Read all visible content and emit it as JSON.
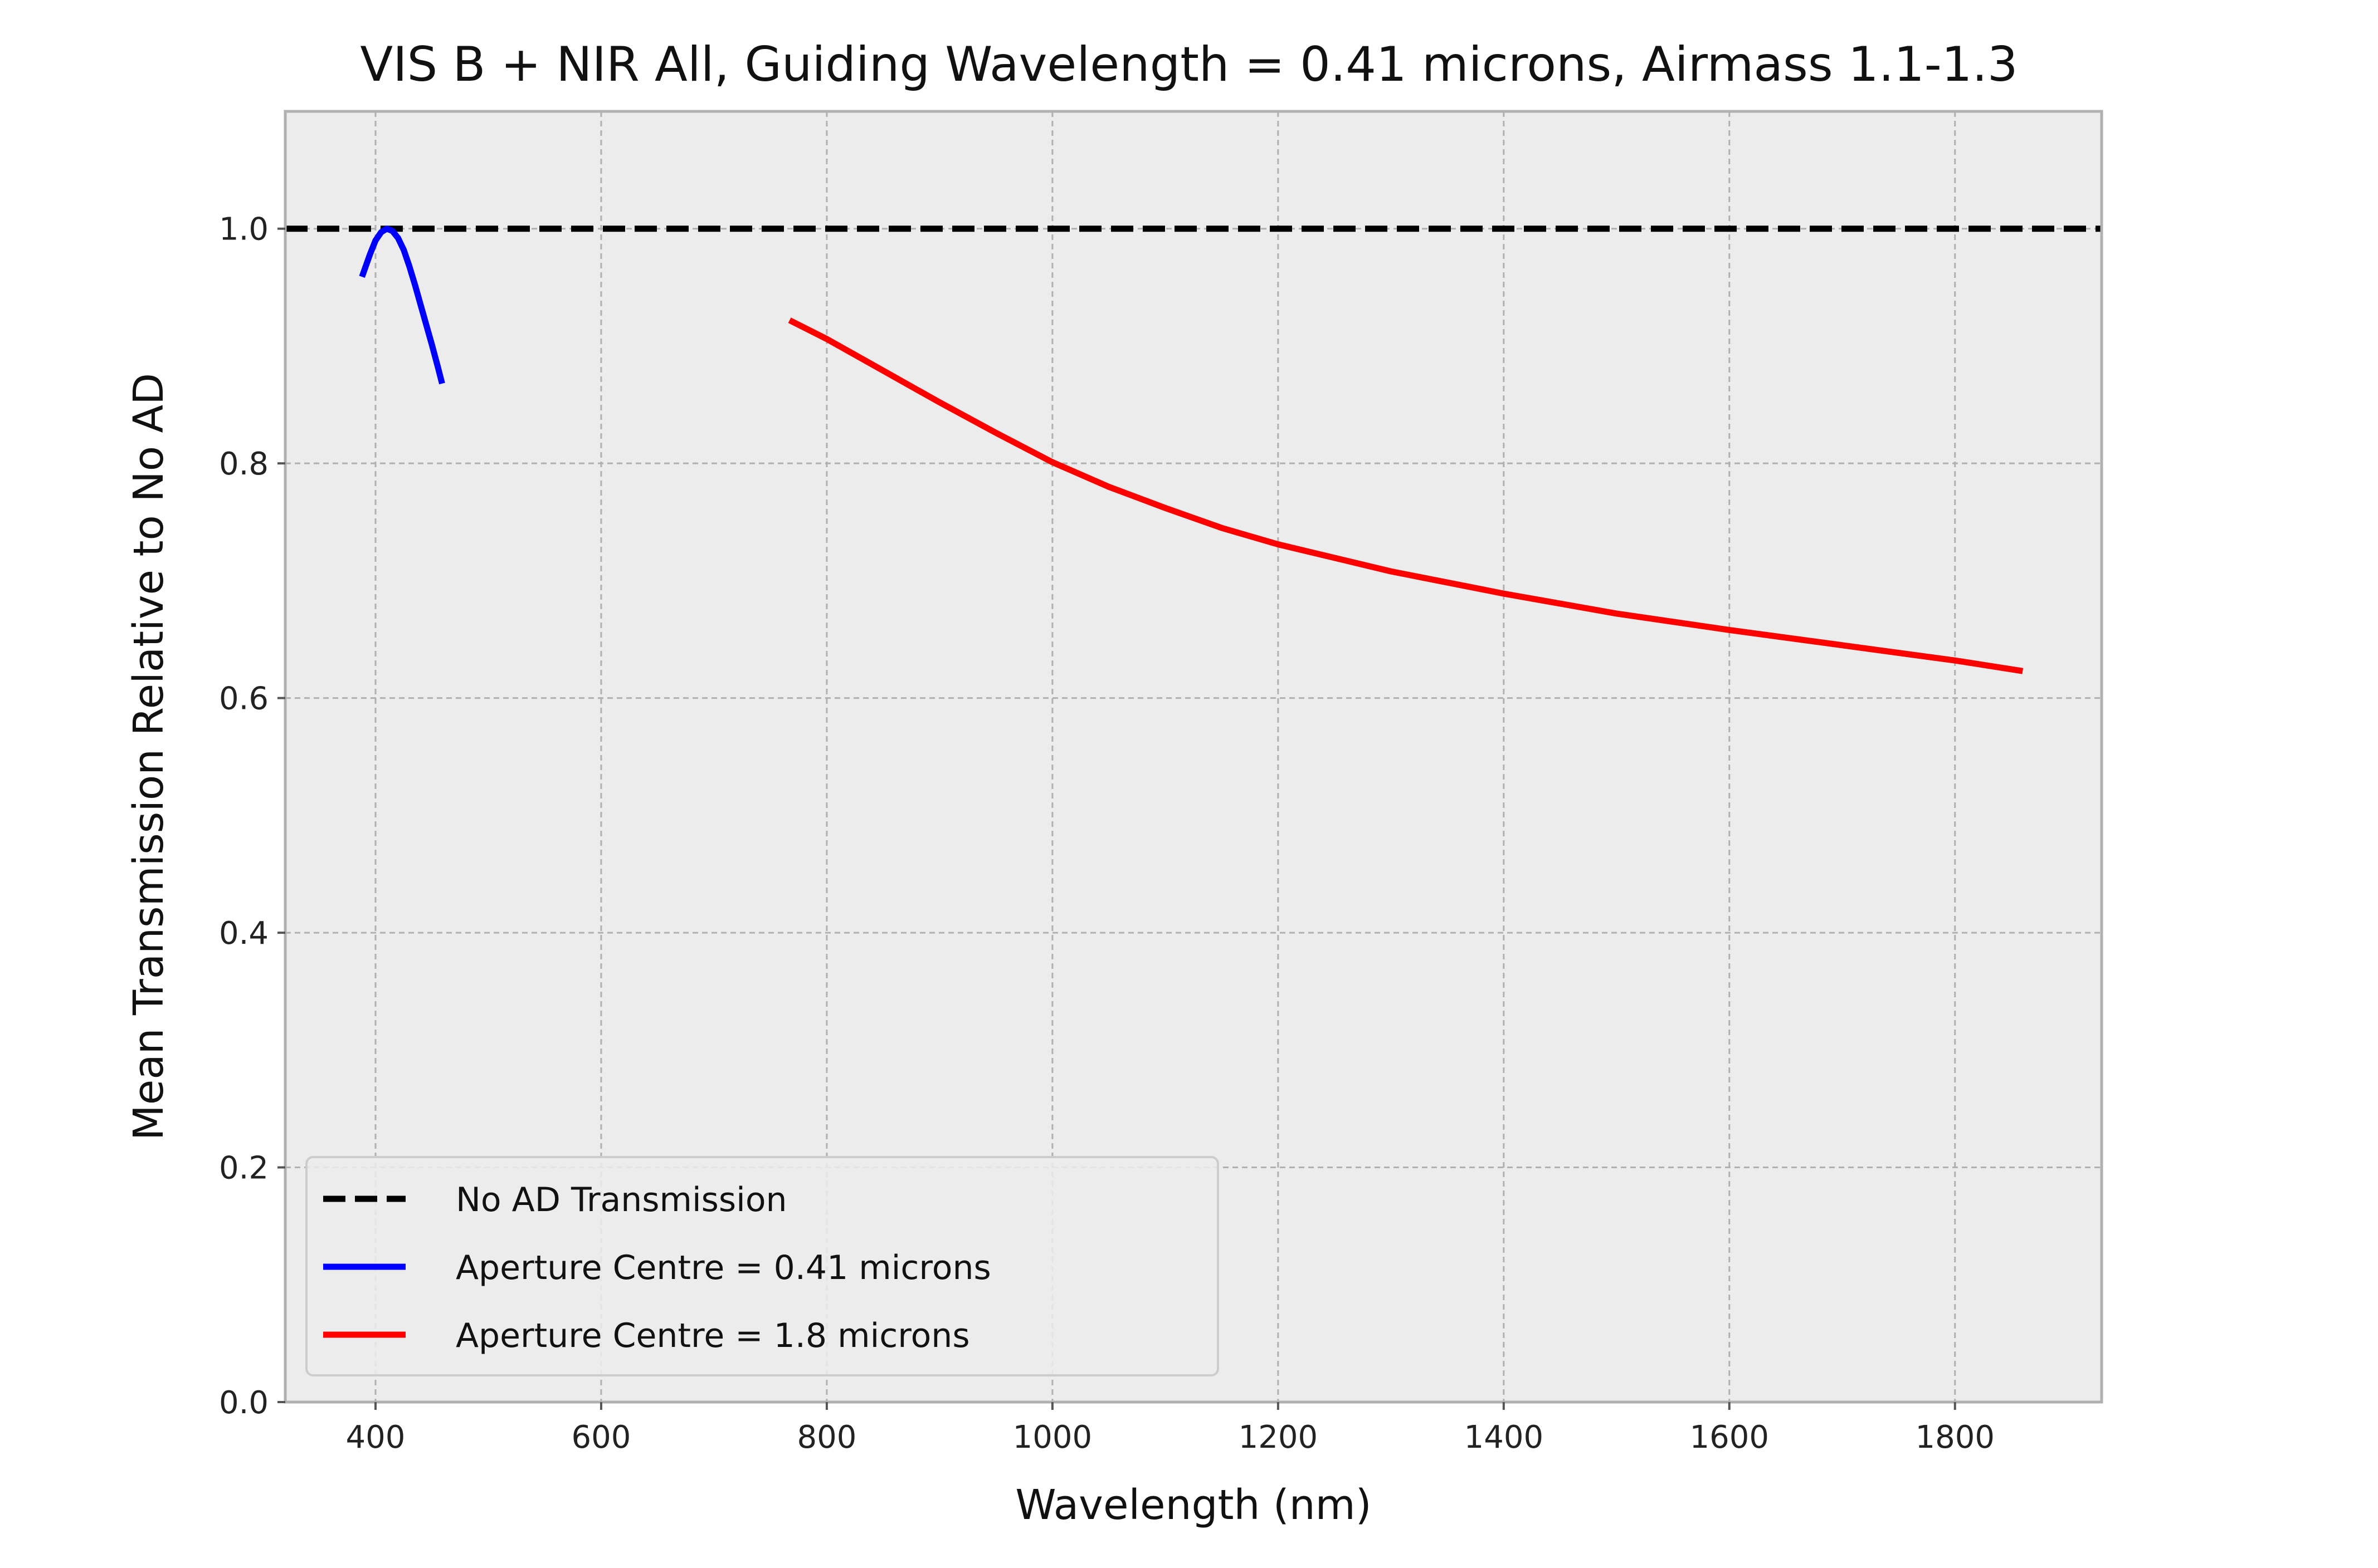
{
  "chart_data": {
    "type": "line",
    "title": "VIS B + NIR All, Guiding Wavelength = 0.41 microns, Airmass 1.1-1.3",
    "xlabel": "Wavelength (nm)",
    "ylabel": "Mean Transmission Relative to No AD",
    "xlim": [
      320,
      1930
    ],
    "ylim": [
      0.0,
      1.1
    ],
    "xticks": [
      400,
      600,
      800,
      1000,
      1200,
      1400,
      1600,
      1800
    ],
    "yticks": [
      0.0,
      0.2,
      0.4,
      0.6,
      0.8,
      1.0
    ],
    "xtick_labels": [
      "400",
      "600",
      "800",
      "1000",
      "1200",
      "1400",
      "1600",
      "1800"
    ],
    "ytick_labels": [
      "0.0",
      "0.2",
      "0.4",
      "0.6",
      "0.8",
      "1.0"
    ],
    "grid": true,
    "legend_position": "lower-left",
    "series": [
      {
        "name": "No AD Transmission",
        "color": "#000000",
        "dash": "dashed",
        "x": [
          320,
          1930
        ],
        "y": [
          1.0,
          1.0
        ]
      },
      {
        "name": "Aperture Centre = 0.41 microns",
        "color": "#0000ff",
        "dash": "solid",
        "x": [
          388,
          395,
          400,
          405,
          410,
          415,
          420,
          425,
          430,
          435,
          440,
          445,
          450,
          455,
          459
        ],
        "y": [
          0.959,
          0.978,
          0.99,
          0.997,
          1.0,
          0.998,
          0.992,
          0.982,
          0.968,
          0.952,
          0.935,
          0.918,
          0.901,
          0.883,
          0.868
        ]
      },
      {
        "name": "Aperture Centre = 1.8 microns",
        "color": "#ff0000",
        "dash": "solid",
        "x": [
          767,
          800,
          850,
          900,
          950,
          1000,
          1050,
          1100,
          1150,
          1200,
          1300,
          1400,
          1500,
          1600,
          1700,
          1800,
          1860
        ],
        "y": [
          0.922,
          0.906,
          0.879,
          0.852,
          0.826,
          0.801,
          0.78,
          0.762,
          0.745,
          0.731,
          0.708,
          0.689,
          0.672,
          0.658,
          0.645,
          0.632,
          0.623
        ]
      }
    ]
  }
}
